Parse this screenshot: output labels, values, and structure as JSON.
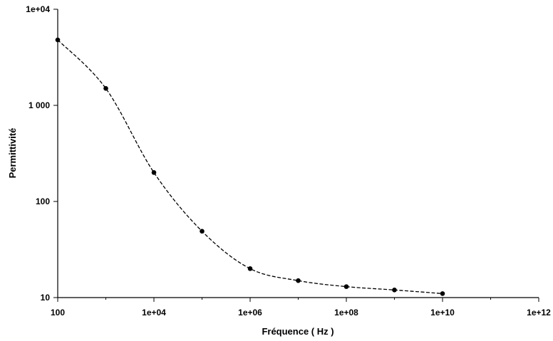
{
  "chart_data": {
    "type": "scatter",
    "xscale": "log",
    "yscale": "log",
    "xlabel": "Fréquence ( Hz )",
    "ylabel": "Permittivité",
    "xlim": [
      100,
      1000000000000.0
    ],
    "ylim": [
      10,
      10000
    ],
    "xticks": [
      {
        "value": 100,
        "label": "100"
      },
      {
        "value": 10000,
        "label": "1e+04"
      },
      {
        "value": 1000000,
        "label": "1e+06"
      },
      {
        "value": 100000000,
        "label": "1e+08"
      },
      {
        "value": 10000000000,
        "label": "1e+10"
      },
      {
        "value": 1000000000000,
        "label": "1e+12"
      }
    ],
    "yticks": [
      {
        "value": 10,
        "label": "10"
      },
      {
        "value": 100,
        "label": "100"
      },
      {
        "value": 1000,
        "label": "1 000"
      },
      {
        "value": 10000,
        "label": "1e+04"
      }
    ],
    "series": [
      {
        "line_style": "dashed",
        "marker": "filled-circle",
        "color": "#000000",
        "x": [
          100,
          1000,
          10000,
          100000,
          1000000,
          10000000,
          100000000,
          1000000000,
          10000000000
        ],
        "y": [
          4800,
          1500,
          200,
          49,
          20,
          15,
          13,
          12,
          11
        ]
      }
    ]
  }
}
